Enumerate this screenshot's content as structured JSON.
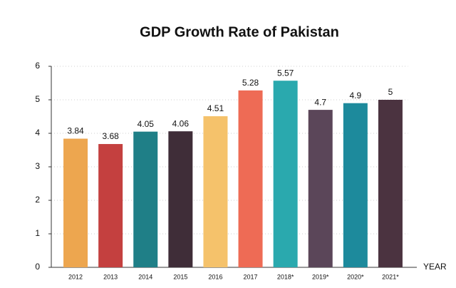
{
  "chart_data": {
    "type": "bar",
    "title": "GDP Growth Rate of Pakistan",
    "x_label": "YEAR",
    "categories": [
      "2012",
      "2013",
      "2014",
      "2015",
      "2016",
      "2017",
      "2018*",
      "2019*",
      "2020*",
      "2021*"
    ],
    "values": [
      3.84,
      3.68,
      4.05,
      4.06,
      4.51,
      5.28,
      5.57,
      4.7,
      4.9,
      5
    ],
    "colors": [
      "#eda64f",
      "#c4403f",
      "#1f7f87",
      "#3f2d38",
      "#f5c26b",
      "#ee6b55",
      "#2aa9ae",
      "#5b4659",
      "#1d8a9c",
      "#4b3340"
    ],
    "ylim": [
      0,
      6
    ],
    "yticks": [
      0,
      1,
      2,
      3,
      4,
      5,
      6
    ],
    "grid": true
  }
}
